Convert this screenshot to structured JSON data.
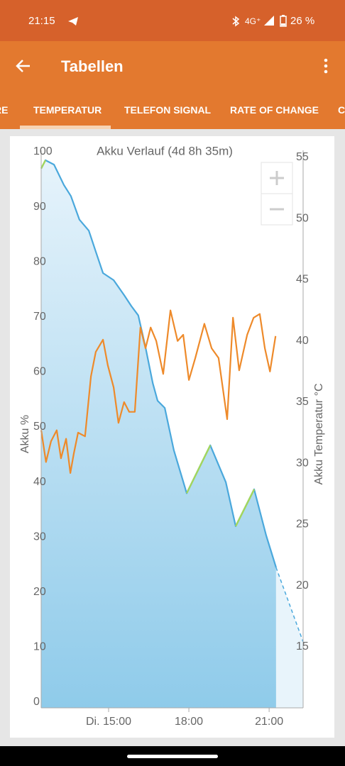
{
  "status_bar": {
    "time": "21:15",
    "network": "4G⁺",
    "battery": "26 %"
  },
  "app_bar": {
    "title": "Tabellen"
  },
  "tabs": [
    "RE",
    "TEMPERATUR",
    "TELEFON SIGNAL",
    "RATE OF CHANGE",
    "C"
  ],
  "chart_data": {
    "type": "line",
    "title": "Akku Verlauf (4d 8h 35m)",
    "ylabel": "Akku %",
    "y2label": "Akku Temperatur °C",
    "xlim": [
      12.48,
      22.27
    ],
    "xticks": [
      {
        "value": 15,
        "label": "Di. 15:00"
      },
      {
        "value": 18,
        "label": "18:00"
      },
      {
        "value": 21,
        "label": "21:00"
      }
    ],
    "ylim": [
      0,
      100
    ],
    "yticks": [
      0,
      10,
      20,
      30,
      40,
      50,
      60,
      70,
      80,
      90,
      100
    ],
    "y2lim": [
      10,
      55
    ],
    "y2ticks": [
      15,
      20,
      25,
      30,
      35,
      40,
      45,
      50,
      55
    ],
    "charging_color": "#a3d65c",
    "series": [
      {
        "color": "#4aa8dc",
        "axis": "y",
        "fill": true,
        "x": [
          12.48,
          12.64,
          12.96,
          13.33,
          13.59,
          13.91,
          14.26,
          14.52,
          14.79,
          15.19,
          15.58,
          15.85,
          16.11,
          16.38,
          16.65,
          16.83,
          17.1,
          17.44,
          17.92,
          18.8,
          19.38,
          19.75,
          20.44,
          20.89,
          21.26
        ],
        "values": [
          98,
          99.5,
          98.7,
          95,
          93,
          88.7,
          86.7,
          82.9,
          79,
          77.7,
          75,
          73,
          71.3,
          65.5,
          59,
          55.8,
          54.5,
          46.8,
          39,
          47.7,
          41,
          33,
          39.7,
          31.3,
          25.5
        ]
      },
      {
        "color": "#4aa8dc",
        "axis": "y",
        "dashed": true,
        "x": [
          21.26,
          22.27
        ],
        "values": [
          25.5,
          12
        ]
      },
      {
        "color": "#ee8a2a",
        "axis": "y2",
        "x": [
          12.48,
          12.66,
          12.85,
          13.06,
          13.22,
          13.41,
          13.57,
          13.7,
          13.86,
          14.12,
          14.34,
          14.52,
          14.79,
          14.97,
          15.19,
          15.37,
          15.58,
          15.77,
          15.98,
          16.19,
          16.38,
          16.57,
          16.78,
          17.04,
          17.31,
          17.58,
          17.79,
          18.0,
          18.24,
          18.58,
          18.85,
          19.11,
          19.43,
          19.65,
          19.88,
          20.18,
          20.42,
          20.65,
          20.84,
          21.03,
          21.24
        ],
        "values": [
          32.7,
          30.1,
          31.8,
          32.7,
          30.4,
          32,
          29.2,
          30.8,
          32.5,
          32.2,
          37.1,
          39.1,
          40.1,
          38,
          36.2,
          33.3,
          35,
          34.2,
          34.2,
          41.1,
          39.4,
          41.1,
          40,
          37.3,
          42.5,
          40,
          40.5,
          36.8,
          38.6,
          41.4,
          39.4,
          38.6,
          33.6,
          41.9,
          37.6,
          40.5,
          41.9,
          42.2,
          39.4,
          37.5,
          40.4
        ]
      }
    ]
  }
}
